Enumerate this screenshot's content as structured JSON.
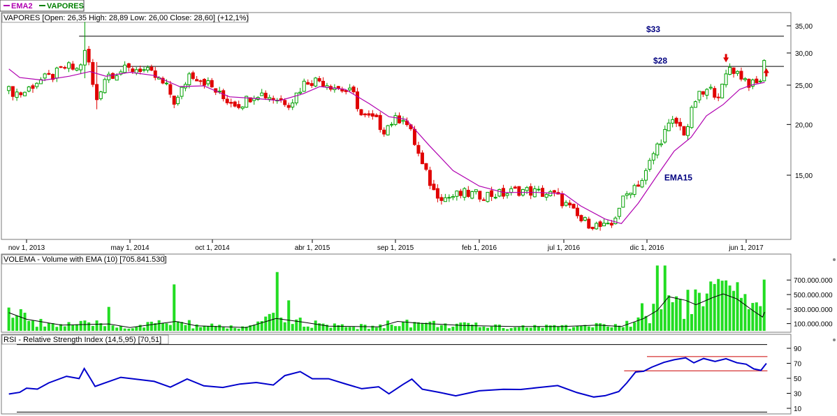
{
  "legend": {
    "ema2": "EMA2",
    "vapores": "VAPORES"
  },
  "colors": {
    "ema_line": "#b000b0",
    "up_candle_fill": "#ffffff",
    "up_candle_stroke": "#00a000",
    "down_candle": "#e00000",
    "volume_bar": "#22dd22",
    "rsi_line": "#0000cc",
    "rsi_band": "#cc0000",
    "label_navy": "#000080",
    "arrow": "#e00000"
  },
  "chart_data": [
    {
      "type": "candlestick",
      "header": "VAPORES [Open: 26,35  High: 28,89  Low: 26,00  Close: 28,60] (+12,1%)",
      "scale": "log",
      "ylim": [
        10.2,
        37
      ],
      "y_ticks": [
        35,
        30,
        25,
        20,
        15
      ],
      "y_tick_labels": [
        "35,00",
        "30,00",
        "25,00",
        "20,00",
        "15,00"
      ],
      "x_range": [
        "2013-10-01",
        "2017-07-15"
      ],
      "x_ticks": [
        "2013-11-01",
        "2014-05-01",
        "2014-10-01",
        "2015-04-01",
        "2015-09-01",
        "2016-02-01",
        "2016-07-01",
        "2016-12-01",
        "2017-06-01"
      ],
      "x_tick_labels": [
        "nov 1, 2013",
        "may 1, 2014",
        "oct 1, 2014",
        "abr 1, 2015",
        "sep 1, 2015",
        "feb 1, 2016",
        "jul 1, 2016",
        "dic 1, 2016",
        "jun 1, 2017"
      ],
      "close_path": [
        [
          "2013-10-01",
          24.2
        ],
        [
          "2013-10-25",
          23.8
        ],
        [
          "2013-11-20",
          25.6
        ],
        [
          "2013-12-15",
          26.2
        ],
        [
          "2014-01-10",
          27.8
        ],
        [
          "2014-01-30",
          27.2
        ],
        [
          "2014-02-12",
          30.2
        ],
        [
          "2014-02-20",
          27.8
        ],
        [
          "2014-03-01",
          22.5
        ],
        [
          "2014-03-20",
          26.5
        ],
        [
          "2014-04-20",
          27.2
        ],
        [
          "2014-05-20",
          27.5
        ],
        [
          "2014-06-15",
          26.3
        ],
        [
          "2014-07-10",
          24.5
        ],
        [
          "2014-07-25",
          22.4
        ],
        [
          "2014-08-20",
          26.8
        ],
        [
          "2014-09-20",
          25.4
        ],
        [
          "2014-10-20",
          23.2
        ],
        [
          "2014-11-20",
          22.4
        ],
        [
          "2014-12-20",
          24.0
        ],
        [
          "2015-01-20",
          23.3
        ],
        [
          "2015-02-20",
          22.6
        ],
        [
          "2015-03-20",
          25.6
        ],
        [
          "2015-04-15",
          25.7
        ],
        [
          "2015-05-15",
          24.7
        ],
        [
          "2015-06-15",
          23.8
        ],
        [
          "2015-07-01",
          20.9
        ],
        [
          "2015-07-25",
          20.6
        ],
        [
          "2015-08-10",
          19.4
        ],
        [
          "2015-08-25",
          20.3
        ],
        [
          "2015-09-15",
          20.9
        ],
        [
          "2015-10-01",
          18.8
        ],
        [
          "2015-10-20",
          15.8
        ],
        [
          "2015-11-10",
          13.7
        ],
        [
          "2015-12-01",
          13.2
        ],
        [
          "2016-01-05",
          13.5
        ],
        [
          "2016-02-05",
          13.4
        ],
        [
          "2016-03-15",
          13.5
        ],
        [
          "2016-04-15",
          13.8
        ],
        [
          "2016-05-15",
          13.6
        ],
        [
          "2016-06-15",
          13.4
        ],
        [
          "2016-07-10",
          12.5
        ],
        [
          "2016-08-01",
          11.6
        ],
        [
          "2016-08-20",
          11.4
        ],
        [
          "2016-09-05",
          11.2
        ],
        [
          "2016-09-25",
          11.1
        ],
        [
          "2016-10-10",
          12.5
        ],
        [
          "2016-11-01",
          13.9
        ],
        [
          "2016-11-25",
          14.7
        ],
        [
          "2016-12-15",
          17.2
        ],
        [
          "2017-01-05",
          19.4
        ],
        [
          "2017-01-20",
          20.4
        ],
        [
          "2017-02-10",
          19.0
        ],
        [
          "2017-03-01",
          23.2
        ],
        [
          "2017-03-25",
          24.3
        ],
        [
          "2017-04-15",
          23.8
        ],
        [
          "2017-05-01",
          27.8
        ],
        [
          "2017-05-20",
          26.6
        ],
        [
          "2017-06-10",
          25.0
        ],
        [
          "2017-06-25",
          25.2
        ],
        [
          "2017-07-05",
          28.6
        ]
      ],
      "ema_path": [
        [
          "2013-10-01",
          27.4
        ],
        [
          "2013-10-20",
          26.1
        ],
        [
          "2013-12-01",
          25.7
        ],
        [
          "2014-01-15",
          26.3
        ],
        [
          "2014-02-20",
          27.0
        ],
        [
          "2014-03-20",
          26.3
        ],
        [
          "2014-05-01",
          26.9
        ],
        [
          "2014-06-15",
          26.4
        ],
        [
          "2014-08-01",
          24.8
        ],
        [
          "2014-09-15",
          24.9
        ],
        [
          "2014-11-01",
          23.4
        ],
        [
          "2014-12-15",
          23.2
        ],
        [
          "2015-02-01",
          22.9
        ],
        [
          "2015-03-15",
          23.8
        ],
        [
          "2015-04-15",
          24.8
        ],
        [
          "2015-06-01",
          24.4
        ],
        [
          "2015-07-15",
          22.5
        ],
        [
          "2015-08-20",
          20.9
        ],
        [
          "2015-09-20",
          20.6
        ],
        [
          "2015-11-01",
          17.8
        ],
        [
          "2015-12-15",
          15.4
        ],
        [
          "2016-02-01",
          14.1
        ],
        [
          "2016-03-15",
          13.6
        ],
        [
          "2016-05-15",
          13.6
        ],
        [
          "2016-07-01",
          13.5
        ],
        [
          "2016-08-01",
          12.6
        ],
        [
          "2016-09-15",
          11.7
        ],
        [
          "2016-10-15",
          11.4
        ],
        [
          "2016-11-15",
          12.8
        ],
        [
          "2016-12-20",
          15.0
        ],
        [
          "2017-01-20",
          17.2
        ],
        [
          "2017-02-20",
          18.6
        ],
        [
          "2017-03-20",
          21.0
        ],
        [
          "2017-04-20",
          22.4
        ],
        [
          "2017-05-20",
          24.4
        ],
        [
          "2017-06-10",
          25.0
        ],
        [
          "2017-07-05",
          25.4
        ]
      ],
      "horizontal_lines": [
        {
          "value": 33,
          "from": "2014-02-01",
          "label": "$33"
        },
        {
          "value": 27.8,
          "from": "2014-03-05",
          "label": "$28"
        }
      ],
      "annotations": [
        {
          "text": "EMA15",
          "date": "2017-01-25",
          "value": 14.8
        }
      ],
      "arrows": [
        {
          "direction": "down",
          "date": "2017-04-25",
          "value": 28.9
        },
        {
          "direction": "up",
          "date": "2017-07-08",
          "value": 26.9
        }
      ]
    },
    {
      "type": "bar",
      "header": "VOLEMA - Volume with EMA (10) [705.841.530]",
      "ylim": [
        0,
        850000000
      ],
      "y_ticks": [
        700000000,
        500000000,
        300000000,
        100000000
      ],
      "y_tick_labels": [
        "700.000.000",
        "500.000.000",
        "300.000.000",
        "100.000.000"
      ],
      "spikes": [
        {
          "date": "2014-03-25",
          "value": 330000000
        },
        {
          "date": "2014-07-25",
          "value": 640000000
        },
        {
          "date": "2015-01-25",
          "value": 810000000
        },
        {
          "date": "2015-02-15",
          "value": 420000000
        },
        {
          "date": "2016-11-20",
          "value": 380000000
        },
        {
          "date": "2016-12-20",
          "value": 900000000
        },
        {
          "date": "2017-01-01",
          "value": 900000000
        },
        {
          "date": "2017-03-01",
          "value": 570000000
        },
        {
          "date": "2017-03-25",
          "value": 680000000
        },
        {
          "date": "2017-05-15",
          "value": 670000000
        },
        {
          "date": "2017-07-05",
          "value": 706000000
        }
      ],
      "ema_path": [
        [
          "2013-10-01",
          250000000
        ],
        [
          "2013-11-01",
          160000000
        ],
        [
          "2014-01-01",
          80000000
        ],
        [
          "2014-03-25",
          95000000
        ],
        [
          "2014-05-01",
          45000000
        ],
        [
          "2014-07-25",
          130000000
        ],
        [
          "2014-09-01",
          70000000
        ],
        [
          "2014-12-01",
          45000000
        ],
        [
          "2015-01-25",
          170000000
        ],
        [
          "2015-03-15",
          120000000
        ],
        [
          "2015-05-01",
          65000000
        ],
        [
          "2015-08-01",
          55000000
        ],
        [
          "2015-09-05",
          130000000
        ],
        [
          "2015-10-15",
          105000000
        ],
        [
          "2016-01-01",
          75000000
        ],
        [
          "2016-04-01",
          60000000
        ],
        [
          "2016-07-01",
          60000000
        ],
        [
          "2016-09-01",
          80000000
        ],
        [
          "2016-10-15",
          60000000
        ],
        [
          "2016-11-25",
          170000000
        ],
        [
          "2016-12-20",
          280000000
        ],
        [
          "2017-01-10",
          470000000
        ],
        [
          "2017-02-10",
          420000000
        ],
        [
          "2017-03-01",
          360000000
        ],
        [
          "2017-04-01",
          460000000
        ],
        [
          "2017-04-20",
          510000000
        ],
        [
          "2017-05-15",
          440000000
        ],
        [
          "2017-06-15",
          270000000
        ],
        [
          "2017-07-01",
          190000000
        ],
        [
          "2017-07-05",
          260000000
        ]
      ]
    },
    {
      "type": "line",
      "header": "RSI - Relative Strength Index (14,5,95) [70,51]",
      "ylim": [
        3,
        100
      ],
      "y_ticks": [
        90,
        70,
        50,
        30,
        10
      ],
      "bounds": [
        95,
        5
      ],
      "bands": [
        {
          "value": 79,
          "from": "2016-12-01",
          "to": "2017-07-10"
        },
        {
          "value": 60,
          "from": "2016-10-20",
          "to": "2017-07-10"
        }
      ],
      "series": [
        {
          "points": [
            [
              "2013-10-01",
              30
            ],
            [
              "2013-10-20",
              30
            ],
            [
              "2013-11-01",
              38
            ],
            [
              "2013-11-20",
              36
            ],
            [
              "2013-12-10",
              45
            ],
            [
              "2014-01-10",
              52
            ],
            [
              "2014-02-01",
              50
            ],
            [
              "2014-02-10",
              62
            ],
            [
              "2014-02-22",
              48
            ],
            [
              "2014-03-01",
              38
            ],
            [
              "2014-03-20",
              44
            ],
            [
              "2014-04-15",
              50
            ],
            [
              "2014-05-15",
              49
            ],
            [
              "2014-06-15",
              46
            ],
            [
              "2014-07-15",
              38
            ],
            [
              "2014-08-15",
              48
            ],
            [
              "2014-09-15",
              40
            ],
            [
              "2014-10-20",
              38
            ],
            [
              "2014-11-20",
              42
            ],
            [
              "2014-12-20",
              45
            ],
            [
              "2015-01-20",
              40
            ],
            [
              "2015-02-10",
              55
            ],
            [
              "2015-03-10",
              58
            ],
            [
              "2015-04-01",
              50
            ],
            [
              "2015-05-01",
              50
            ],
            [
              "2015-06-01",
              42
            ],
            [
              "2015-07-01",
              35
            ],
            [
              "2015-08-01",
              38
            ],
            [
              "2015-08-20",
              28
            ],
            [
              "2015-09-15",
              42
            ],
            [
              "2015-10-01",
              48
            ],
            [
              "2015-10-20",
              35
            ],
            [
              "2015-11-20",
              30
            ],
            [
              "2015-12-20",
              28
            ],
            [
              "2016-02-01",
              33
            ],
            [
              "2016-03-15",
              35
            ],
            [
              "2016-04-15",
              35
            ],
            [
              "2016-05-15",
              37
            ],
            [
              "2016-06-20",
              40
            ],
            [
              "2016-07-25",
              30
            ],
            [
              "2016-08-25",
              24
            ],
            [
              "2016-09-15",
              26
            ],
            [
              "2016-10-10",
              33
            ],
            [
              "2016-10-25",
              45
            ],
            [
              "2016-11-10",
              58
            ],
            [
              "2016-11-25",
              60
            ],
            [
              "2016-12-10",
              65
            ],
            [
              "2017-01-01",
              72
            ],
            [
              "2017-01-20",
              74
            ],
            [
              "2017-02-10",
              76
            ],
            [
              "2017-02-25",
              70
            ],
            [
              "2017-03-15",
              76
            ],
            [
              "2017-04-05",
              72
            ],
            [
              "2017-04-25",
              75
            ],
            [
              "2017-05-15",
              70
            ],
            [
              "2017-06-01",
              68
            ],
            [
              "2017-06-15",
              62
            ],
            [
              "2017-06-28",
              62
            ],
            [
              "2017-07-08",
              70.5
            ]
          ]
        }
      ]
    }
  ]
}
